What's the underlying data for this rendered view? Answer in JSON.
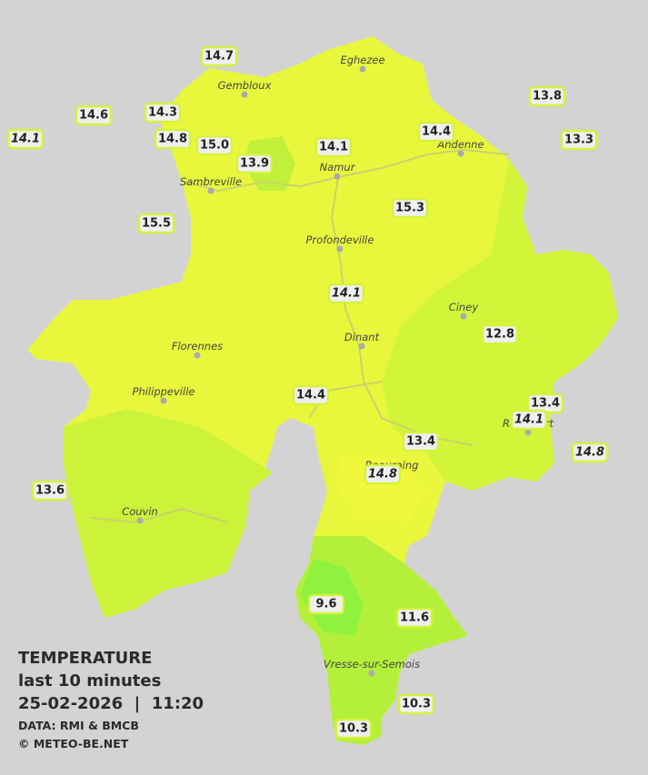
{
  "legend": {
    "title": "TEMPERATURE",
    "period": "last 10 minutes",
    "datetime": "25-02-2026  |  11:20",
    "source": "DATA: RMI & BMCB",
    "copyright": "© METEO-BE.NET"
  },
  "cities": [
    "Eghezee",
    "Gembloux",
    "Andenne",
    "Namur",
    "Sambreville",
    "Profondeville",
    "Ciney",
    "Florennes",
    "Dinant",
    "Philippeville",
    "Rochefort",
    "Beauraing",
    "Couvin",
    "Vresse-sur-Semois"
  ],
  "stations": [
    {
      "text": "14.7",
      "italic": false
    },
    {
      "text": "14.6",
      "italic": false
    },
    {
      "text": "14.3",
      "italic": false
    },
    {
      "text": "14.1",
      "italic": true
    },
    {
      "text": "14.8",
      "italic": false
    },
    {
      "text": "15.0",
      "italic": false
    },
    {
      "text": "13.9",
      "italic": false
    },
    {
      "text": "14.1",
      "italic": false
    },
    {
      "text": "14.4",
      "italic": false
    },
    {
      "text": "13.8",
      "italic": false
    },
    {
      "text": "13.3",
      "italic": false
    },
    {
      "text": "15.5",
      "italic": false
    },
    {
      "text": "15.3",
      "italic": false
    },
    {
      "text": "14.1",
      "italic": true
    },
    {
      "text": "12.8",
      "italic": false
    },
    {
      "text": "14.4",
      "italic": false
    },
    {
      "text": "13.4",
      "italic": false
    },
    {
      "text": "14.1",
      "italic": true
    },
    {
      "text": "13.4",
      "italic": false
    },
    {
      "text": "14.8",
      "italic": true
    },
    {
      "text": "14.8",
      "italic": true
    },
    {
      "text": "13.6",
      "italic": false
    },
    {
      "text": "9.6",
      "italic": false
    },
    {
      "text": "11.6",
      "italic": false
    },
    {
      "text": "10.3",
      "italic": false
    },
    {
      "text": "10.3",
      "italic": false
    }
  ]
}
